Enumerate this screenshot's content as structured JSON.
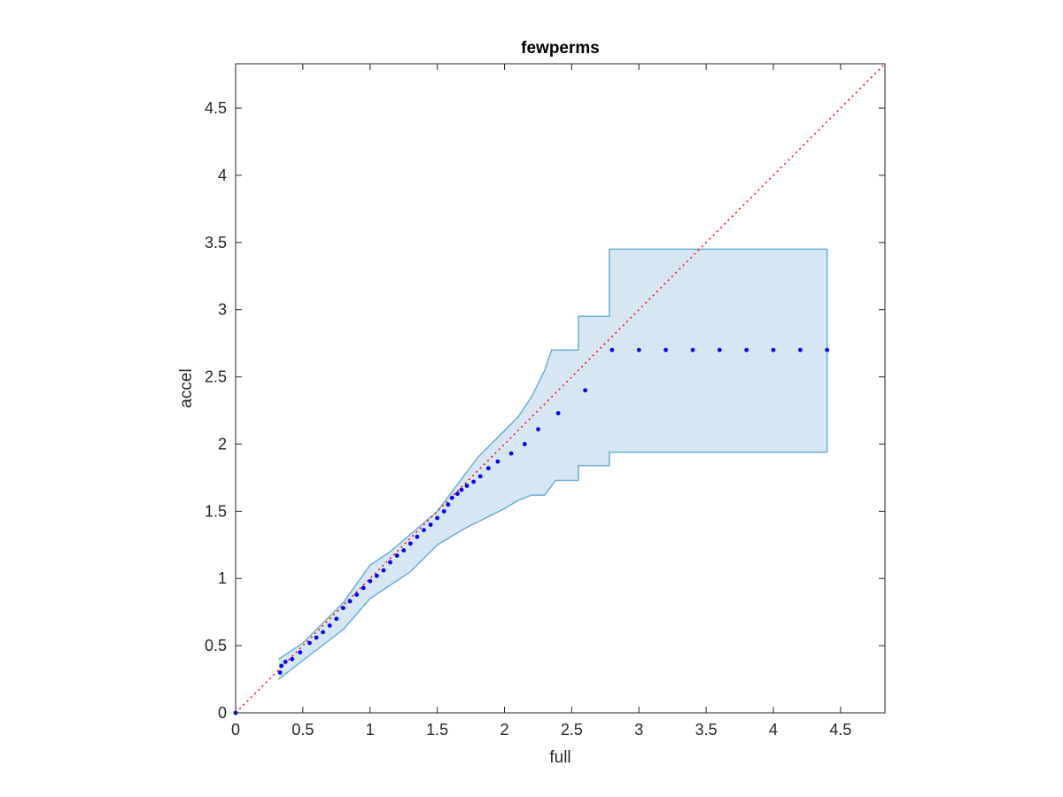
{
  "chart_data": {
    "type": "scatter",
    "title": "fewperms",
    "xlabel": "full",
    "ylabel": "accel",
    "xlim": [
      0,
      4.83
    ],
    "ylim": [
      0,
      4.83
    ],
    "xticks": [
      "0",
      "0.5",
      "1",
      "1.5",
      "2",
      "2.5",
      "3",
      "3.5",
      "4",
      "4.5"
    ],
    "yticks": [
      "0",
      "0.5",
      "1",
      "1.5",
      "2",
      "2.5",
      "3",
      "3.5",
      "4",
      "4.5"
    ],
    "grid": false,
    "legend": "none",
    "reference_line": {
      "x": [
        0,
        4.83
      ],
      "y": [
        0,
        4.83
      ],
      "style": "dotted",
      "color": "#ff0000"
    },
    "band": {
      "color": "#6baed6",
      "fill": "#d6e6f3",
      "upper": [
        [
          0.32,
          0.4
        ],
        [
          0.5,
          0.52
        ],
        [
          0.8,
          0.82
        ],
        [
          1.0,
          1.1
        ],
        [
          1.15,
          1.2
        ],
        [
          1.5,
          1.5
        ],
        [
          1.8,
          1.9
        ],
        [
          1.9,
          2.0
        ],
        [
          2.0,
          2.1
        ],
        [
          2.1,
          2.2
        ],
        [
          2.2,
          2.35
        ],
        [
          2.3,
          2.55
        ],
        [
          2.35,
          2.7
        ],
        [
          2.55,
          2.7
        ],
        [
          2.55,
          2.95
        ],
        [
          2.78,
          2.95
        ],
        [
          2.78,
          3.45
        ],
        [
          4.4,
          3.45
        ]
      ],
      "lower": [
        [
          0.32,
          0.25
        ],
        [
          0.5,
          0.39
        ],
        [
          0.8,
          0.62
        ],
        [
          1.0,
          0.85
        ],
        [
          1.15,
          0.95
        ],
        [
          1.3,
          1.05
        ],
        [
          1.5,
          1.25
        ],
        [
          1.7,
          1.37
        ],
        [
          1.9,
          1.47
        ],
        [
          2.0,
          1.52
        ],
        [
          2.1,
          1.58
        ],
        [
          2.2,
          1.62
        ],
        [
          2.3,
          1.62
        ],
        [
          2.38,
          1.73
        ],
        [
          2.55,
          1.73
        ],
        [
          2.55,
          1.84
        ],
        [
          2.78,
          1.84
        ],
        [
          2.78,
          1.94
        ],
        [
          4.4,
          1.94
        ]
      ]
    },
    "series": [
      {
        "color": "#0000ff",
        "points": [
          [
            0,
            0
          ],
          [
            0.33,
            0.3
          ],
          [
            0.34,
            0.35
          ],
          [
            0.37,
            0.38
          ],
          [
            0.42,
            0.4
          ],
          [
            0.48,
            0.45
          ],
          [
            0.55,
            0.52
          ],
          [
            0.6,
            0.56
          ],
          [
            0.65,
            0.6
          ],
          [
            0.7,
            0.65
          ],
          [
            0.75,
            0.7
          ],
          [
            0.8,
            0.78
          ],
          [
            0.85,
            0.83
          ],
          [
            0.9,
            0.88
          ],
          [
            0.95,
            0.93
          ],
          [
            1.0,
            0.98
          ],
          [
            1.05,
            1.02
          ],
          [
            1.1,
            1.06
          ],
          [
            1.15,
            1.12
          ],
          [
            1.2,
            1.17
          ],
          [
            1.25,
            1.21
          ],
          [
            1.3,
            1.26
          ],
          [
            1.35,
            1.31
          ],
          [
            1.4,
            1.36
          ],
          [
            1.45,
            1.4
          ],
          [
            1.5,
            1.45
          ],
          [
            1.55,
            1.5
          ],
          [
            1.58,
            1.55
          ],
          [
            1.61,
            1.6
          ],
          [
            1.65,
            1.63
          ],
          [
            1.68,
            1.66
          ],
          [
            1.72,
            1.69
          ],
          [
            1.77,
            1.72
          ],
          [
            1.82,
            1.76
          ],
          [
            1.88,
            1.82
          ],
          [
            1.95,
            1.87
          ],
          [
            2.05,
            1.93
          ],
          [
            2.15,
            2.0
          ],
          [
            2.25,
            2.11
          ],
          [
            2.4,
            2.23
          ],
          [
            2.6,
            2.4
          ],
          [
            2.8,
            2.7
          ],
          [
            3.0,
            2.7
          ],
          [
            3.2,
            2.7
          ],
          [
            3.4,
            2.7
          ],
          [
            3.6,
            2.7
          ],
          [
            3.8,
            2.7
          ],
          [
            4.0,
            2.7
          ],
          [
            4.2,
            2.7
          ],
          [
            4.4,
            2.7
          ]
        ]
      }
    ]
  }
}
